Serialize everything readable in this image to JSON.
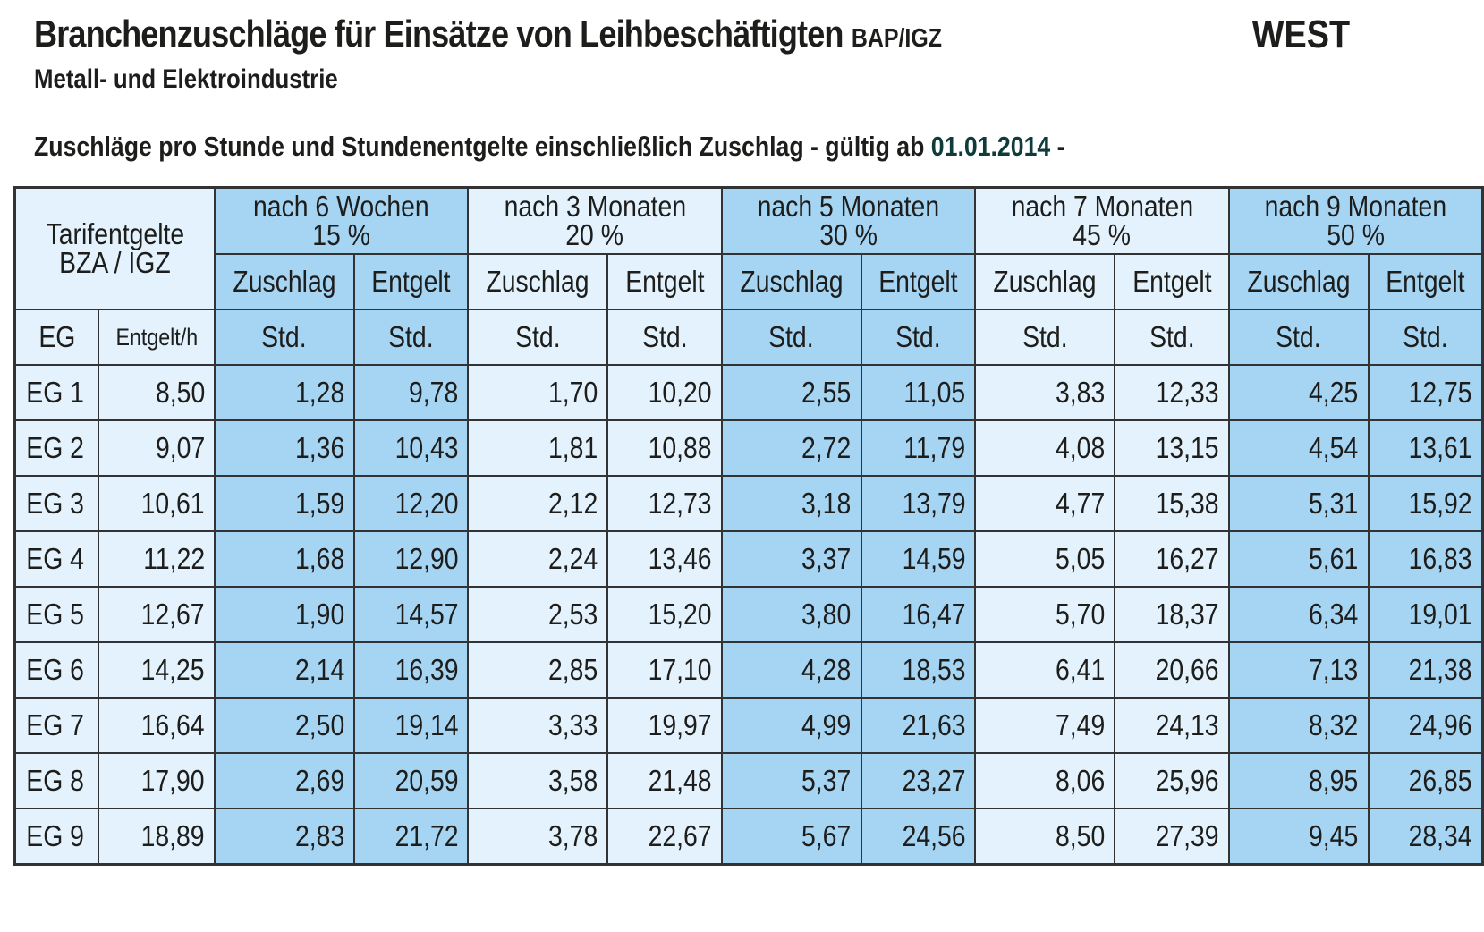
{
  "header": {
    "title": "Branchenzuschläge für Einsätze von Leihbeschäftigten",
    "title_suffix": "BAP/IGZ",
    "region": "WEST",
    "subtitle": "Metall- und Elektroindustrie",
    "validity_text": "Zuschläge pro Stunde und Stundenentgelte einschließlich Zuschlag - gültig ab",
    "validity_date": "01.01.2014",
    "validity_suffix": " -"
  },
  "colors": {
    "light_cell": "#e3f2fc",
    "dark_cell": "#a6d5f4",
    "border": "#333333",
    "date": "#0f3b3b"
  },
  "table": {
    "base_header": "Tarifentgelte BZA / IGZ",
    "base_header_line1": "Tarifentgelte",
    "base_header_line2": "BZA / IGZ",
    "eg_label": "EG",
    "entgelt_h_label": "Entgelt/h",
    "groups": [
      {
        "label": "nach 6 Wochen",
        "percent": "15 %",
        "sub": [
          "Zuschlag",
          "Entgelt"
        ],
        "unit": [
          "Std.",
          "Std."
        ]
      },
      {
        "label": "nach 3 Monaten",
        "percent": "20 %",
        "sub": [
          "Zuschlag",
          "Entgelt"
        ],
        "unit": [
          "Std.",
          "Std."
        ]
      },
      {
        "label": "nach 5 Monaten",
        "percent": "30 %",
        "sub": [
          "Zuschlag",
          "Entgelt"
        ],
        "unit": [
          "Std.",
          "Std."
        ]
      },
      {
        "label": "nach 7 Monaten",
        "percent": "45 %",
        "sub": [
          "Zuschlag",
          "Entgelt"
        ],
        "unit": [
          "Std.",
          "Std."
        ]
      },
      {
        "label": "nach 9 Monaten",
        "percent": "50 %",
        "sub": [
          "Zuschlag",
          "Entgelt"
        ],
        "unit": [
          "Std.",
          "Std."
        ]
      }
    ],
    "rows": [
      {
        "eg": "EG 1",
        "base": "8,50",
        "values": [
          "1,28",
          "9,78",
          "1,70",
          "10,20",
          "2,55",
          "11,05",
          "3,83",
          "12,33",
          "4,25",
          "12,75"
        ]
      },
      {
        "eg": "EG 2",
        "base": "9,07",
        "values": [
          "1,36",
          "10,43",
          "1,81",
          "10,88",
          "2,72",
          "11,79",
          "4,08",
          "13,15",
          "4,54",
          "13,61"
        ]
      },
      {
        "eg": "EG 3",
        "base": "10,61",
        "values": [
          "1,59",
          "12,20",
          "2,12",
          "12,73",
          "3,18",
          "13,79",
          "4,77",
          "15,38",
          "5,31",
          "15,92"
        ]
      },
      {
        "eg": "EG 4",
        "base": "11,22",
        "values": [
          "1,68",
          "12,90",
          "2,24",
          "13,46",
          "3,37",
          "14,59",
          "5,05",
          "16,27",
          "5,61",
          "16,83"
        ]
      },
      {
        "eg": "EG 5",
        "base": "12,67",
        "values": [
          "1,90",
          "14,57",
          "2,53",
          "15,20",
          "3,80",
          "16,47",
          "5,70",
          "18,37",
          "6,34",
          "19,01"
        ]
      },
      {
        "eg": "EG 6",
        "base": "14,25",
        "values": [
          "2,14",
          "16,39",
          "2,85",
          "17,10",
          "4,28",
          "18,53",
          "6,41",
          "20,66",
          "7,13",
          "21,38"
        ]
      },
      {
        "eg": "EG 7",
        "base": "16,64",
        "values": [
          "2,50",
          "19,14",
          "3,33",
          "19,97",
          "4,99",
          "21,63",
          "7,49",
          "24,13",
          "8,32",
          "24,96"
        ]
      },
      {
        "eg": "EG 8",
        "base": "17,90",
        "values": [
          "2,69",
          "20,59",
          "3,58",
          "21,48",
          "5,37",
          "23,27",
          "8,06",
          "25,96",
          "8,95",
          "26,85"
        ]
      },
      {
        "eg": "EG 9",
        "base": "18,89",
        "values": [
          "2,83",
          "21,72",
          "3,78",
          "22,67",
          "5,67",
          "24,56",
          "8,50",
          "27,39",
          "9,45",
          "28,34"
        ]
      }
    ]
  }
}
